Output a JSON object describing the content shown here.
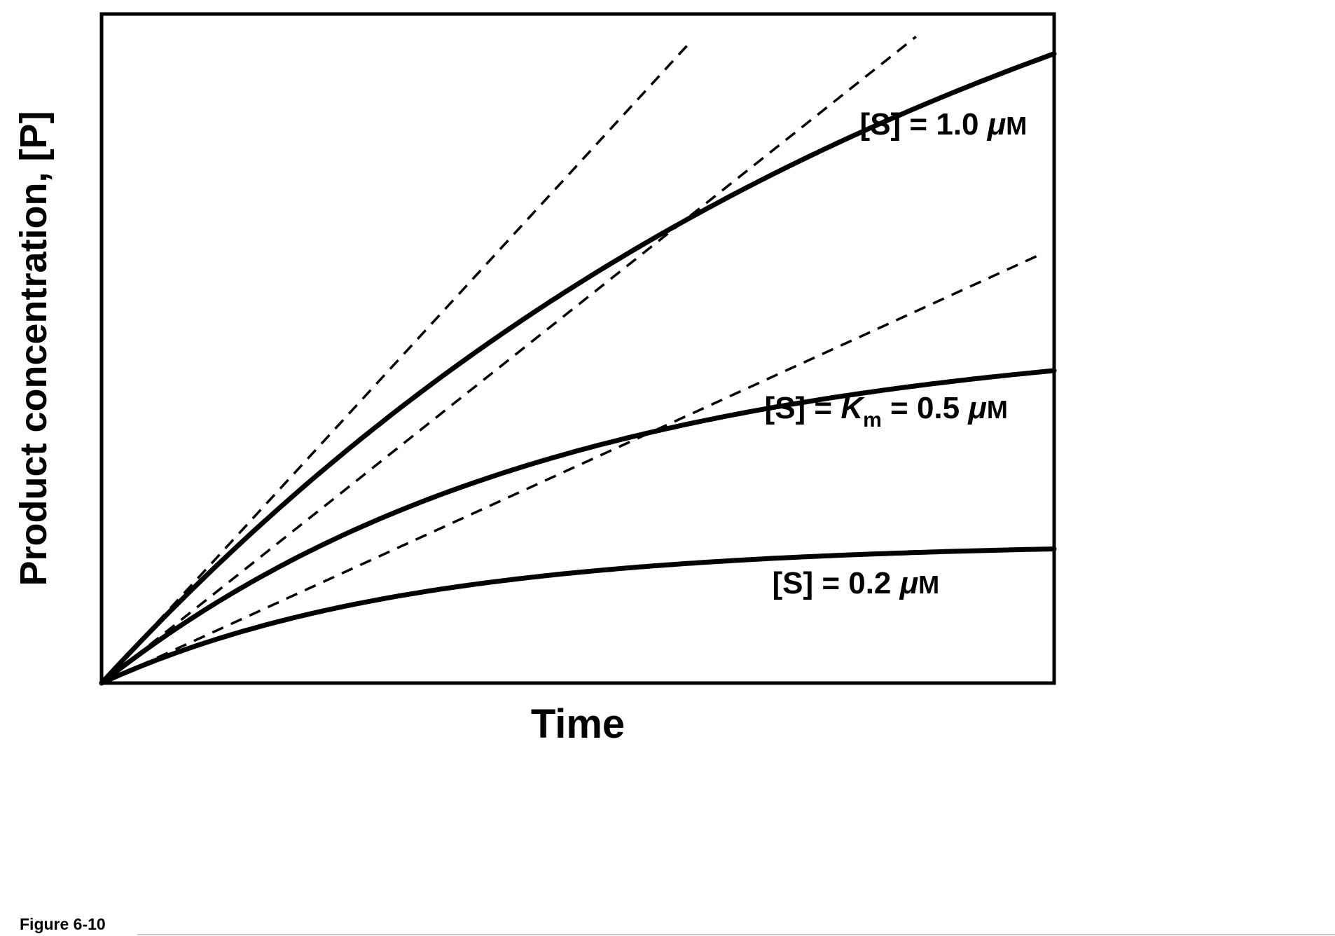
{
  "figure": {
    "caption": "Figure 6-10",
    "background": "#ffffff",
    "ink": "#000000"
  },
  "chart_data": {
    "type": "line",
    "title": "",
    "xlabel": "Time",
    "ylabel": "Product concentration, [P]",
    "x_axis": {
      "range": [
        0,
        1
      ],
      "ticks": [],
      "unit": "arbitrary"
    },
    "y_axis": {
      "range": [
        0,
        1
      ],
      "ticks": [],
      "unit": "arbitrary"
    },
    "frame": true,
    "grid": false,
    "legend": "inline-annotations",
    "series": [
      {
        "name": "substrate-1.0uM",
        "label_text": "[S] = 1.0 μM",
        "style": "solid",
        "model": "P(t) = Pmax*(1-exp(-k*t))",
        "pmax": 1.41,
        "k": 1.1,
        "initial_velocity_slope": 1.55,
        "x": [
          0,
          0.1,
          0.2,
          0.3,
          0.4,
          0.5,
          0.6,
          0.7,
          0.8,
          0.9,
          1.0
        ],
        "y": [
          0,
          0.147,
          0.278,
          0.396,
          0.502,
          0.597,
          0.681,
          0.757,
          0.825,
          0.886,
          0.941
        ]
      },
      {
        "name": "substrate-0.5uM",
        "label_text": "[S] = Km = 0.5 μM",
        "style": "solid",
        "model": "P(t) = Pmax*(1-exp(-k*t))",
        "pmax": 0.53,
        "k": 2.13,
        "initial_velocity_slope": 1.13,
        "x": [
          0,
          0.1,
          0.2,
          0.3,
          0.4,
          0.5,
          0.6,
          0.7,
          0.8,
          0.9,
          1.0
        ],
        "y": [
          0,
          0.102,
          0.184,
          0.25,
          0.304,
          0.347,
          0.382,
          0.411,
          0.434,
          0.452,
          0.467
        ]
      },
      {
        "name": "substrate-0.2uM",
        "label_text": "[S] = 0.2 μM",
        "style": "solid",
        "model": "P(t) = Pmax*(1-exp(-k*t))",
        "pmax": 0.21,
        "k": 3.1,
        "initial_velocity_slope": 0.65,
        "x": [
          0,
          0.1,
          0.2,
          0.3,
          0.4,
          0.5,
          0.6,
          0.7,
          0.8,
          0.9,
          1.0
        ],
        "y": [
          0,
          0.056,
          0.097,
          0.127,
          0.149,
          0.165,
          0.177,
          0.186,
          0.192,
          0.197,
          0.2
        ]
      }
    ],
    "initial_rate_tangents": [
      {
        "series": "substrate-1.0uM",
        "style": "dashed",
        "slope": 1.55,
        "x_end": 0.62
      },
      {
        "series": "substrate-0.5uM",
        "style": "dashed",
        "slope": 1.13,
        "x_end": 0.855
      },
      {
        "series": "substrate-0.2uM",
        "style": "dashed",
        "slope": 0.65,
        "x_end": 0.985
      }
    ],
    "annotations": [
      {
        "name": "series-label-1.0uM",
        "text": "[S] = 1.0 μM",
        "x": 0.796,
        "y": 0.82,
        "parts": [
          [
            "[S] = 1.0 ",
            "b"
          ],
          [
            "μ",
            "bi"
          ],
          [
            "M",
            "sc"
          ]
        ]
      },
      {
        "name": "series-label-0.5uM",
        "text": "[S] = Km = 0.5 μM",
        "x": 0.696,
        "y": 0.396,
        "parts": [
          [
            "[S] = ",
            "b"
          ],
          [
            "K",
            "bi"
          ],
          [
            "m",
            "sub"
          ],
          [
            " = 0.5 ",
            "b"
          ],
          [
            "μ",
            "bi"
          ],
          [
            "M",
            "sc"
          ]
        ]
      },
      {
        "name": "series-label-0.2uM",
        "text": "[S] = 0.2 μM",
        "x": 0.704,
        "y": 0.134,
        "parts": [
          [
            "[S] = 0.2 ",
            "b"
          ],
          [
            "μ",
            "bi"
          ],
          [
            "M",
            "sc"
          ]
        ]
      }
    ]
  }
}
